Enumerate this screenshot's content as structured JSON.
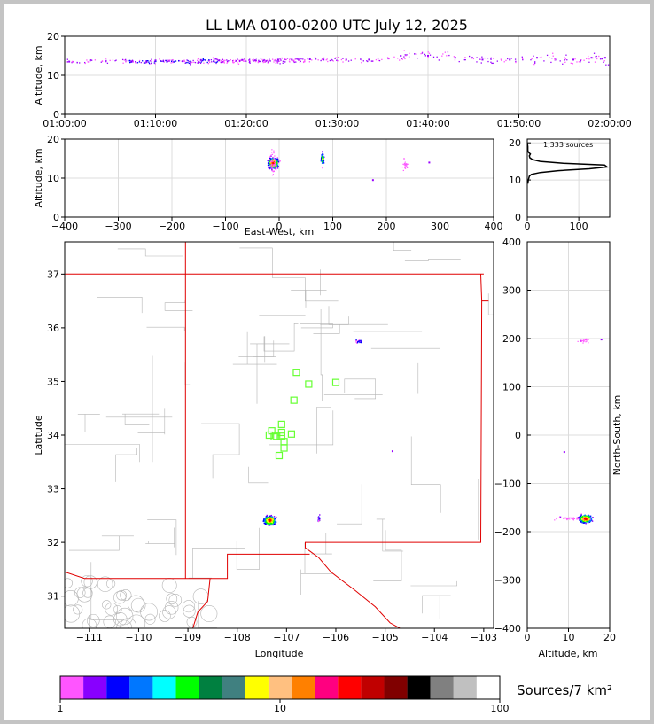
{
  "title": "LL LMA 0100-0200 UTC July 12, 2025",
  "chart_data": [
    {
      "id": "time_height",
      "type": "scatter",
      "ylabel": "Altitude, km",
      "xlim": [
        "01:00:00",
        "02:00:00"
      ],
      "ylim": [
        0,
        20
      ],
      "x_ticks": [
        "01:00:00",
        "01:10:00",
        "01:20:00",
        "01:30:00",
        "01:40:00",
        "01:50:00",
        "02:00:00"
      ],
      "y_ticks": [
        "0",
        "10",
        "20"
      ],
      "grid": true,
      "series": [
        {
          "x_minutes": [
            0.5,
            2.8,
            7.5,
            9.0,
            10.0,
            11.5,
            13.0,
            15.0,
            17.0,
            19.5,
            21.0,
            23.5,
            25.0,
            27.0,
            28.5,
            31.0,
            33.5,
            37.0,
            40.0,
            43.0,
            46.0,
            49.0,
            52.0,
            54.0,
            56.0,
            58.0,
            59.5
          ],
          "altitude_km": [
            13.5,
            13.8,
            13.5,
            13.6,
            13.8,
            13.7,
            13.6,
            13.9,
            13.8,
            13.9,
            13.8,
            14.0,
            14.0,
            14.1,
            14.0,
            14.0,
            14.0,
            15.0,
            15.0,
            14.5,
            14.0,
            14.0,
            14.5,
            14.0,
            14.0,
            14.5,
            14.5
          ]
        }
      ]
    },
    {
      "id": "ew_height",
      "type": "scatter",
      "xlabel": "East-West, km",
      "ylabel": "Altitude, km",
      "xlim": [
        -400,
        400
      ],
      "ylim": [
        0,
        20
      ],
      "x_ticks": [
        "−400",
        "−300",
        "−200",
        "−100",
        "0",
        "100",
        "200",
        "300",
        "400"
      ],
      "y_ticks": [
        "0",
        "10",
        "20"
      ],
      "grid": true,
      "series": [
        {
          "x_km": [
            -12,
            80,
            237,
            175,
            280
          ],
          "altitude_km": [
            14,
            15.5,
            13.5,
            9.5,
            14.0
          ]
        }
      ]
    },
    {
      "id": "altitude_histogram",
      "type": "line",
      "annotation": "1,333 sources",
      "xlim": [
        0,
        160
      ],
      "ylim": [
        0,
        21
      ],
      "x_ticks": [
        "0",
        "100"
      ],
      "y_ticks": [
        "0",
        "10",
        "20"
      ],
      "grid": true,
      "series": [
        {
          "altitude_km": [
            9,
            10,
            11,
            11.5,
            12,
            12.5,
            13,
            13.5,
            14,
            14.5,
            15,
            15.5,
            16,
            16.5,
            17,
            17.5,
            18,
            19,
            20
          ],
          "count": [
            1,
            2,
            4,
            8,
            25,
            60,
            120,
            155,
            150,
            70,
            25,
            10,
            5,
            4,
            6,
            2,
            1,
            1,
            0
          ]
        }
      ]
    },
    {
      "id": "plan_view",
      "type": "scatter",
      "xlabel": "Longitude",
      "ylabel": "Latitude",
      "xlim": [
        -111.5,
        -102.8
      ],
      "ylim": [
        30.4,
        37.6
      ],
      "x_ticks": [
        "−111",
        "−110",
        "−109",
        "−108",
        "−107",
        "−106",
        "−105",
        "−104",
        "−103"
      ],
      "y_ticks": [
        "31",
        "32",
        "33",
        "34",
        "35",
        "36",
        "37"
      ],
      "grid": false,
      "series": [
        {
          "name": "sources",
          "lon": [
            -107.35,
            -106.35,
            -105.53,
            -104.85
          ],
          "lat": [
            32.4,
            32.45,
            35.75,
            33.7
          ]
        },
        {
          "name": "stations",
          "lon": [
            -106.8,
            -106.55,
            -106.0,
            -106.85,
            -107.1,
            -107.3,
            -107.2,
            -107.1,
            -107.35,
            -107.25,
            -107.05,
            -106.9,
            -107.1,
            -107.05,
            -107.15
          ],
          "lat": [
            35.17,
            34.95,
            34.98,
            34.65,
            34.2,
            34.08,
            33.98,
            34.05,
            34.0,
            33.97,
            33.88,
            34.02,
            33.98,
            33.76,
            33.62
          ]
        }
      ]
    },
    {
      "id": "ns_height",
      "type": "scatter",
      "xlabel": "Altitude, km",
      "ylabel": "North-South, km",
      "xlim": [
        0,
        20
      ],
      "ylim": [
        -400,
        400
      ],
      "x_ticks": [
        "0",
        "10",
        "20"
      ],
      "y_ticks": [
        "−400",
        "−300",
        "−200",
        "−100",
        "0",
        "100",
        "200",
        "300",
        "400"
      ],
      "grid": true,
      "series": [
        {
          "altitude_km": [
            14,
            13,
            9,
            8,
            18
          ],
          "ns_km": [
            -172,
            195,
            -35,
            -170,
            198
          ]
        }
      ]
    },
    {
      "id": "colorbar",
      "type": "heatmap",
      "label": "Sources/7 km²",
      "scale": "log",
      "range": [
        1,
        100
      ],
      "ticks": [
        "1",
        "10",
        "100"
      ],
      "colors": [
        "#ff55ff",
        "#8800ff",
        "#0000ff",
        "#0077ff",
        "#00ffff",
        "#00ff00",
        "#008040",
        "#408080",
        "#ffff00",
        "#ffc080",
        "#ff8000",
        "#ff0080",
        "#ff0000",
        "#c00000",
        "#800000",
        "#000000",
        "#808080",
        "#c0c0c0",
        "#ffffff"
      ]
    }
  ]
}
